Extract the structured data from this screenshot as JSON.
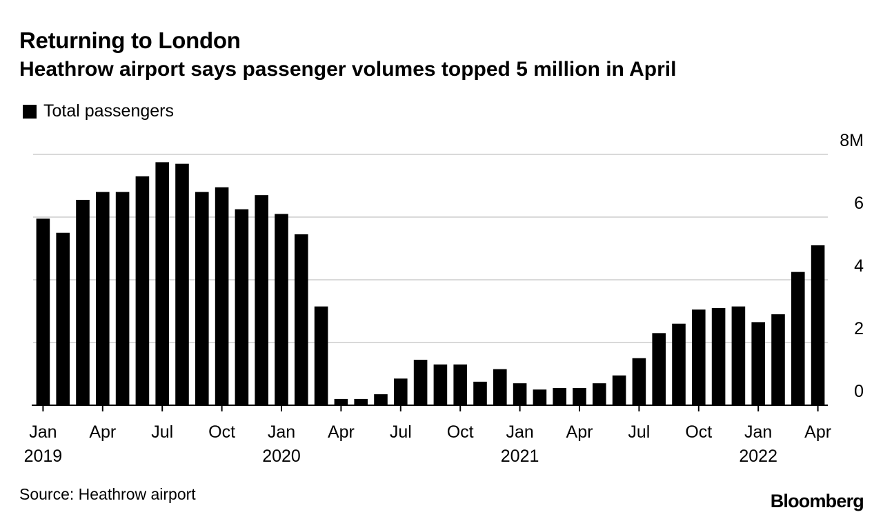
{
  "title": "Returning to London",
  "subtitle": "Heathrow airport says passenger volumes topped 5 million in April",
  "legend": {
    "label": "Total passengers"
  },
  "source": "Source: Heathrow airport",
  "brand": "Bloomberg",
  "chart_data": {
    "type": "bar",
    "title": "Returning to London",
    "subtitle": "Heathrow airport says passenger volumes topped 5 million in April",
    "xlabel": "",
    "ylabel": "",
    "grid": true,
    "legend_position": "top-left",
    "y_axis_position": "right",
    "ylim": [
      0,
      8
    ],
    "y_unit": "M",
    "y_ticks": [
      {
        "value": 0,
        "label": "0"
      },
      {
        "value": 2,
        "label": "2"
      },
      {
        "value": 4,
        "label": "4"
      },
      {
        "value": 6,
        "label": "6"
      },
      {
        "value": 8,
        "label": "8M"
      }
    ],
    "x_ticks": [
      {
        "index": 0,
        "label": "Jan",
        "year": "2019"
      },
      {
        "index": 3,
        "label": "Apr",
        "year": ""
      },
      {
        "index": 6,
        "label": "Jul",
        "year": ""
      },
      {
        "index": 9,
        "label": "Oct",
        "year": ""
      },
      {
        "index": 12,
        "label": "Jan",
        "year": "2020"
      },
      {
        "index": 15,
        "label": "Apr",
        "year": ""
      },
      {
        "index": 18,
        "label": "Jul",
        "year": ""
      },
      {
        "index": 21,
        "label": "Oct",
        "year": ""
      },
      {
        "index": 24,
        "label": "Jan",
        "year": "2021"
      },
      {
        "index": 27,
        "label": "Apr",
        "year": ""
      },
      {
        "index": 30,
        "label": "Jul",
        "year": ""
      },
      {
        "index": 33,
        "label": "Oct",
        "year": ""
      },
      {
        "index": 36,
        "label": "Jan",
        "year": "2022"
      },
      {
        "index": 39,
        "label": "Apr",
        "year": ""
      }
    ],
    "categories": [
      "2019-01",
      "2019-02",
      "2019-03",
      "2019-04",
      "2019-05",
      "2019-06",
      "2019-07",
      "2019-08",
      "2019-09",
      "2019-10",
      "2019-11",
      "2019-12",
      "2020-01",
      "2020-02",
      "2020-03",
      "2020-04",
      "2020-05",
      "2020-06",
      "2020-07",
      "2020-08",
      "2020-09",
      "2020-10",
      "2020-11",
      "2020-12",
      "2021-01",
      "2021-02",
      "2021-03",
      "2021-04",
      "2021-05",
      "2021-06",
      "2021-07",
      "2021-08",
      "2021-09",
      "2021-10",
      "2021-11",
      "2021-12",
      "2022-01",
      "2022-02",
      "2022-03",
      "2022-04"
    ],
    "series": [
      {
        "name": "Total passengers",
        "color": "#000000",
        "values": [
          5.95,
          5.5,
          6.55,
          6.8,
          6.8,
          7.3,
          7.75,
          7.7,
          6.8,
          6.95,
          6.25,
          6.7,
          6.1,
          5.45,
          3.15,
          0.2,
          0.2,
          0.35,
          0.85,
          1.45,
          1.3,
          1.3,
          0.75,
          1.15,
          0.7,
          0.5,
          0.55,
          0.55,
          0.7,
          0.95,
          1.5,
          2.3,
          2.6,
          3.05,
          3.1,
          3.15,
          2.65,
          2.9,
          4.25,
          5.1
        ]
      }
    ]
  }
}
